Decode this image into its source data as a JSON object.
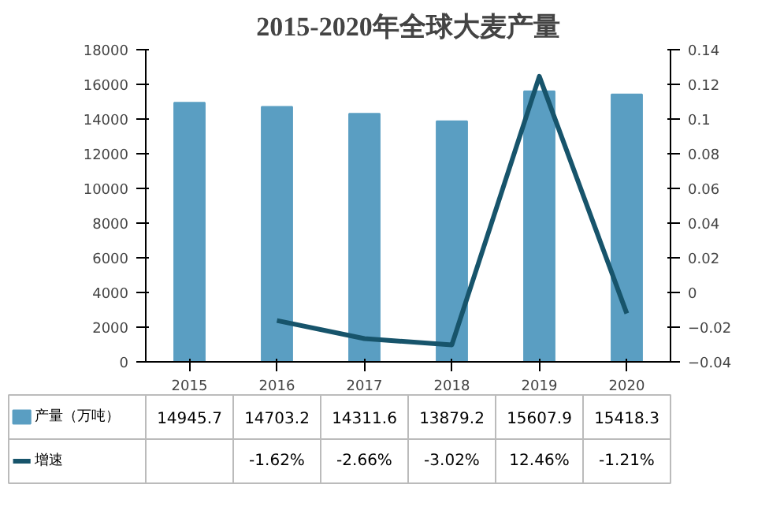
{
  "chart_data": {
    "type": "bar",
    "title": "2015-2020年全球大麦产量",
    "categories": [
      "2015",
      "2016",
      "2017",
      "2018",
      "2019",
      "2020"
    ],
    "series": [
      {
        "name": "产量（万吨）",
        "color": "#5a9ec2",
        "values": [
          14945.7,
          14703.2,
          14311.6,
          13879.2,
          15607.9,
          15418.3
        ],
        "value_labels": [
          "14945.7",
          "14703.2",
          "14311.6",
          "13879.2",
          "15607.9",
          "15418.3"
        ]
      },
      {
        "name": "增速",
        "type": "line",
        "axis": "y2",
        "color": "#17546b",
        "values": [
          null,
          -0.0162,
          -0.0266,
          -0.0302,
          0.1246,
          -0.0121
        ],
        "value_labels": [
          null,
          "-1.62%",
          "-2.66%",
          "-3.02%",
          "12.46%",
          "-1.21%"
        ]
      }
    ],
    "ylim": [
      0,
      18000
    ],
    "yticks": [
      0,
      2000,
      4000,
      6000,
      8000,
      10000,
      12000,
      14000,
      16000,
      18000
    ],
    "y2lim": [
      -0.04,
      0.14
    ],
    "y2ticks": [
      -0.04,
      -0.02,
      0,
      0.02,
      0.04,
      0.06,
      0.08,
      0.1,
      0.12,
      0.14
    ],
    "legend": "bottom"
  }
}
